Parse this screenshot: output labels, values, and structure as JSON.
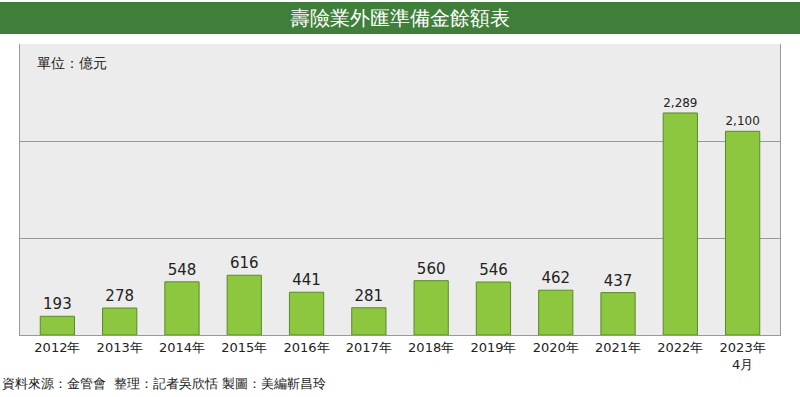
{
  "chart_data": {
    "type": "bar",
    "title": "壽險業外匯準備金餘額表",
    "annotations": [
      "單位：億元",
      "資料來源：金管會  整理：記者吳欣恬 製圖：美編靳昌玲"
    ],
    "categories": [
      "2012年",
      "2013年",
      "2014年",
      "2015年",
      "2016年",
      "2017年",
      "2018年",
      "2019年",
      "2020年",
      "2021年",
      "2022年",
      "2023年\n4月"
    ],
    "values": [
      193,
      278,
      548,
      616,
      441,
      281,
      560,
      546,
      462,
      437,
      2289,
      2100
    ],
    "value_labels": [
      "193",
      "278",
      "548",
      "616",
      "441",
      "281",
      "560",
      "546",
      "462",
      "437",
      "2,289",
      "2,100"
    ],
    "color": "#8dc63f",
    "ylim": [
      0,
      3000
    ],
    "yticks": [
      0,
      1000,
      2000,
      3000
    ],
    "grid": true,
    "data_labels": true,
    "tick_labels": "x"
  }
}
